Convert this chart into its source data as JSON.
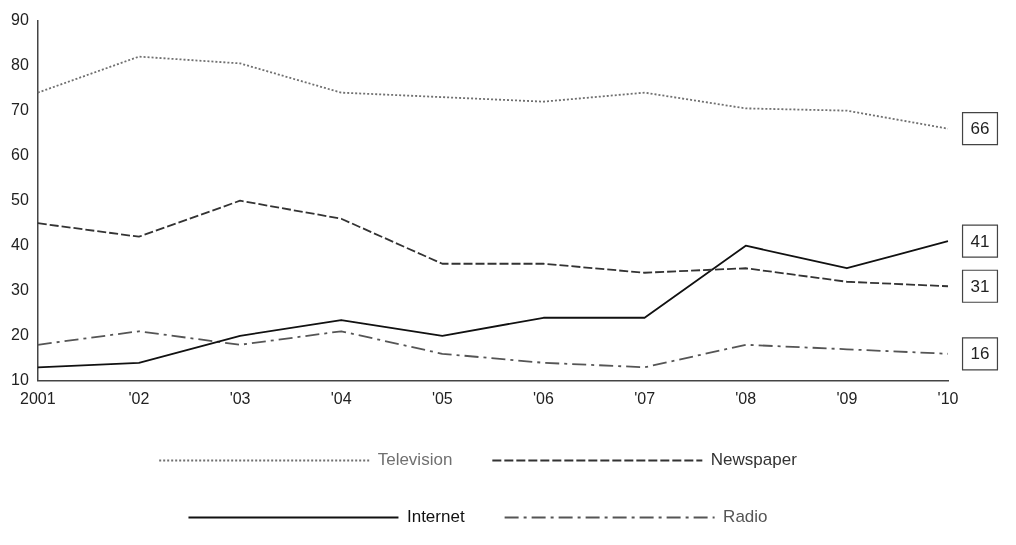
{
  "chart_data": {
    "type": "line",
    "categories": [
      "2001",
      "'02",
      "'03",
      "'04",
      "'05",
      "'06",
      "'07",
      "'08",
      "'09",
      "'10"
    ],
    "ylim": [
      10,
      90
    ],
    "yticks": [
      10,
      20,
      30,
      40,
      50,
      60,
      70,
      80,
      90
    ],
    "grid": false,
    "legend": "bottom",
    "marker": "none",
    "series": [
      {
        "name": "Television",
        "color": "#707070",
        "line_style": "dotted",
        "values": [
          74,
          82,
          80.5,
          74,
          73,
          72,
          74,
          70.5,
          70,
          66
        ],
        "value_labels": [
          null,
          null,
          null,
          null,
          null,
          null,
          null,
          null,
          null,
          "66"
        ]
      },
      {
        "name": "Newspaper",
        "color": "#333333",
        "line_style": "dashed",
        "values": [
          45,
          42,
          50,
          46,
          36,
          36,
          34,
          35,
          32,
          31
        ],
        "value_labels": [
          null,
          null,
          null,
          null,
          null,
          null,
          null,
          null,
          null,
          "31"
        ]
      },
      {
        "name": "Internet",
        "color": "#111111",
        "line_style": "solid",
        "values": [
          13,
          14,
          20,
          23.5,
          20,
          24,
          24,
          40,
          35,
          41
        ],
        "value_labels": [
          null,
          null,
          null,
          null,
          null,
          null,
          null,
          null,
          null,
          "41"
        ]
      },
      {
        "name": "Radio",
        "color": "#555555",
        "line_style": "dashdot",
        "values": [
          18,
          21,
          18,
          21,
          16,
          14,
          13,
          18,
          17,
          16
        ],
        "value_labels": [
          null,
          null,
          null,
          null,
          null,
          null,
          null,
          null,
          null,
          "16"
        ]
      }
    ]
  }
}
